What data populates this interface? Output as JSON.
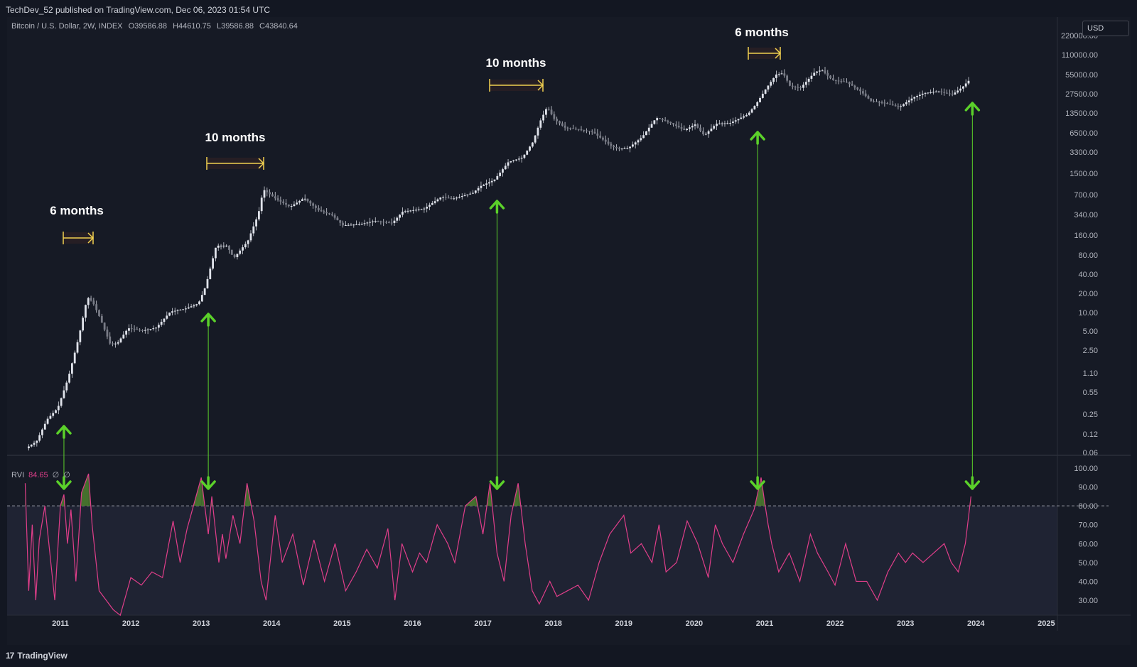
{
  "header": {
    "publisher_line": "TechDev_52 published on TradingView.com, Dec 06, 2023 01:54 UTC"
  },
  "symbol": {
    "name": "Bitcoin / U.S. Dollar, 2W, INDEX",
    "open": "O39586.88",
    "high": "H44610.75",
    "low": "L39586.88",
    "close": "C43840.64"
  },
  "currency_button": "USD",
  "indicator": {
    "name": "RVI",
    "value": "84.65",
    "na1": "∅",
    "na2": "∅"
  },
  "footer": {
    "brand": "TradingView",
    "logo_glyph": "17"
  },
  "colors": {
    "background": "#161a25",
    "candle": "#d1d4dc",
    "rvi_line": "#e03e8a",
    "rvi_fill": "#4a7a2f",
    "arrow": "#5bd12a",
    "bracket": "#f0d050",
    "grid": "#1e222d"
  },
  "chart_data": [
    {
      "type": "candlestick",
      "title": "Bitcoin / U.S. Dollar, 2W, INDEX",
      "y_scale": "log",
      "y_ticks": [
        "220000.00",
        "110000.00",
        "55000.00",
        "27500.00",
        "13500.00",
        "6500.00",
        "3300.00",
        "1500.00",
        "700.00",
        "340.00",
        "160.00",
        "80.00",
        "40.00",
        "20.00",
        "10.00",
        "5.00",
        "2.50",
        "1.10",
        "0.55",
        "0.25",
        "0.12",
        "0.06"
      ],
      "x_ticks": [
        "2011",
        "2012",
        "2013",
        "2014",
        "2015",
        "2016",
        "2017",
        "2018",
        "2019",
        "2020",
        "2021",
        "2022",
        "2023",
        "2024",
        "2025"
      ],
      "series": [
        {
          "points": [
            [
              2010.55,
              0.07
            ],
            [
              2010.7,
              0.09
            ],
            [
              2010.85,
              0.2
            ],
            [
              2011.0,
              0.3
            ],
            [
              2011.15,
              0.9
            ],
            [
              2011.3,
              4
            ],
            [
              2011.42,
              17
            ],
            [
              2011.5,
              14
            ],
            [
              2011.6,
              8
            ],
            [
              2011.75,
              3
            ],
            [
              2011.85,
              3.2
            ],
            [
              2012.0,
              5.5
            ],
            [
              2012.2,
              5
            ],
            [
              2012.4,
              5.6
            ],
            [
              2012.6,
              10
            ],
            [
              2012.8,
              11
            ],
            [
              2013.0,
              13.5
            ],
            [
              2013.1,
              25
            ],
            [
              2013.25,
              110
            ],
            [
              2013.4,
              110
            ],
            [
              2013.5,
              70
            ],
            [
              2013.7,
              130
            ],
            [
              2013.85,
              350
            ],
            [
              2013.92,
              850
            ],
            [
              2014.1,
              600
            ],
            [
              2014.3,
              450
            ],
            [
              2014.5,
              620
            ],
            [
              2014.7,
              400
            ],
            [
              2014.9,
              330
            ],
            [
              2015.05,
              230
            ],
            [
              2015.3,
              240
            ],
            [
              2015.5,
              270
            ],
            [
              2015.75,
              250
            ],
            [
              2015.9,
              380
            ],
            [
              2016.2,
              420
            ],
            [
              2016.45,
              650
            ],
            [
              2016.6,
              600
            ],
            [
              2016.9,
              750
            ],
            [
              2017.0,
              950
            ],
            [
              2017.2,
              1200
            ],
            [
              2017.4,
              2300
            ],
            [
              2017.6,
              2700
            ],
            [
              2017.75,
              4800
            ],
            [
              2017.85,
              10000
            ],
            [
              2017.95,
              17000
            ],
            [
              2018.05,
              11000
            ],
            [
              2018.2,
              8000
            ],
            [
              2018.4,
              7500
            ],
            [
              2018.6,
              6800
            ],
            [
              2018.85,
              4200
            ],
            [
              2018.95,
              3700
            ],
            [
              2019.1,
              3800
            ],
            [
              2019.3,
              5700
            ],
            [
              2019.5,
              11500
            ],
            [
              2019.7,
              9500
            ],
            [
              2019.9,
              7300
            ],
            [
              2020.05,
              9000
            ],
            [
              2020.18,
              6000
            ],
            [
              2020.35,
              9200
            ],
            [
              2020.55,
              9500
            ],
            [
              2020.8,
              13000
            ],
            [
              2020.92,
              19000
            ],
            [
              2021.05,
              32000
            ],
            [
              2021.2,
              55000
            ],
            [
              2021.3,
              58000
            ],
            [
              2021.4,
              36000
            ],
            [
              2021.55,
              34000
            ],
            [
              2021.75,
              60000
            ],
            [
              2021.85,
              65000
            ],
            [
              2022.0,
              45000
            ],
            [
              2022.2,
              42000
            ],
            [
              2022.4,
              30000
            ],
            [
              2022.55,
              21000
            ],
            [
              2022.75,
              19500
            ],
            [
              2022.95,
              16800
            ],
            [
              2023.15,
              24000
            ],
            [
              2023.3,
              28000
            ],
            [
              2023.5,
              30000
            ],
            [
              2023.7,
              26500
            ],
            [
              2023.85,
              35000
            ],
            [
              2023.93,
              43840
            ]
          ]
        }
      ]
    },
    {
      "type": "line",
      "title": "RVI",
      "y_ticks": [
        "100.00",
        "90.00",
        "80.00",
        "70.00",
        "60.00",
        "50.00",
        "40.00",
        "30.00"
      ],
      "threshold": 80,
      "series": [
        {
          "name": "RVI",
          "x": [
            2010.5,
            2010.55,
            2010.6,
            2010.65,
            2010.7,
            2010.78,
            2010.85,
            2010.92,
            2011.0,
            2011.05,
            2011.1,
            2011.15,
            2011.22,
            2011.3,
            2011.4,
            2011.45,
            2011.55,
            2011.65,
            2011.75,
            2011.85,
            2012.0,
            2012.15,
            2012.3,
            2012.45,
            2012.6,
            2012.7,
            2012.8,
            2013.0,
            2013.1,
            2013.15,
            2013.25,
            2013.3,
            2013.35,
            2013.45,
            2013.55,
            2013.65,
            2013.75,
            2013.85,
            2013.92,
            2014.05,
            2014.15,
            2014.3,
            2014.45,
            2014.6,
            2014.75,
            2014.9,
            2015.05,
            2015.2,
            2015.35,
            2015.5,
            2015.65,
            2015.75,
            2015.85,
            2016.0,
            2016.1,
            2016.2,
            2016.35,
            2016.5,
            2016.6,
            2016.75,
            2016.9,
            2017.0,
            2017.1,
            2017.2,
            2017.3,
            2017.4,
            2017.5,
            2017.6,
            2017.7,
            2017.8,
            2017.95,
            2018.05,
            2018.2,
            2018.35,
            2018.5,
            2018.65,
            2018.8,
            2018.9,
            2019.0,
            2019.1,
            2019.25,
            2019.4,
            2019.5,
            2019.6,
            2019.75,
            2019.9,
            2020.05,
            2020.2,
            2020.3,
            2020.4,
            2020.55,
            2020.7,
            2020.85,
            2020.95,
            2021.0,
            2021.05,
            2021.1,
            2021.2,
            2021.35,
            2021.5,
            2021.65,
            2021.75,
            2021.9,
            2022.0,
            2022.15,
            2022.3,
            2022.45,
            2022.6,
            2022.75,
            2022.9,
            2023.0,
            2023.1,
            2023.25,
            2023.4,
            2023.55,
            2023.65,
            2023.75,
            2023.85,
            2023.93
          ],
          "values": [
            92,
            35,
            70,
            30,
            62,
            80,
            55,
            30,
            80,
            86,
            60,
            78,
            40,
            87,
            97,
            70,
            35,
            30,
            25,
            22,
            42,
            38,
            45,
            42,
            72,
            50,
            68,
            95,
            65,
            85,
            50,
            65,
            52,
            75,
            60,
            92,
            72,
            40,
            30,
            75,
            50,
            65,
            38,
            62,
            40,
            60,
            35,
            45,
            57,
            47,
            68,
            30,
            60,
            45,
            55,
            50,
            70,
            60,
            50,
            80,
            85,
            65,
            92,
            55,
            40,
            75,
            92,
            60,
            35,
            28,
            40,
            32,
            35,
            38,
            30,
            50,
            65,
            70,
            75,
            55,
            60,
            50,
            70,
            45,
            50,
            72,
            60,
            42,
            70,
            60,
            50,
            65,
            78,
            95,
            82,
            70,
            60,
            45,
            55,
            40,
            65,
            55,
            45,
            38,
            60,
            40,
            40,
            30,
            45,
            55,
            50,
            55,
            50,
            55,
            60,
            50,
            45,
            60,
            85
          ]
        }
      ]
    }
  ],
  "annotations": [
    {
      "label": "6 months",
      "year": 2011.05
    },
    {
      "label": "10 months",
      "year": 2013.05
    },
    {
      "label": "10 months",
      "year": 2017.05
    },
    {
      "label": "6 months",
      "year": 2020.95
    }
  ],
  "arrow_years": [
    2011.05,
    2013.1,
    2017.2,
    2020.9,
    2023.95
  ]
}
